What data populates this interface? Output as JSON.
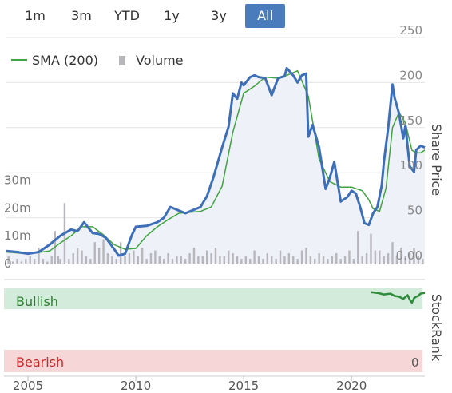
{
  "range_buttons": [
    {
      "label": "1m",
      "active": false
    },
    {
      "label": "3m",
      "active": false
    },
    {
      "label": "YTD",
      "active": false
    },
    {
      "label": "1y",
      "active": false
    },
    {
      "label": "3y",
      "active": false
    },
    {
      "label": "All",
      "active": true
    }
  ],
  "colors": {
    "price": "#3d6fb8",
    "sma": "#3fa33f",
    "volume": "#b7b7bb",
    "area": "#eef1f7",
    "bullish_band": "#d2ebdb",
    "bearish_band": "#f6d6d6",
    "stockrank": "#2e8b3a",
    "grid": "#e4e4e4",
    "accent": "#4a7bbd"
  },
  "chart_data": [
    {
      "type": "line",
      "legend": [
        {
          "label": "SMA (200)",
          "kind": "line"
        },
        {
          "label": "Volume",
          "kind": "bar"
        }
      ],
      "legend_position": "top-left",
      "ylabel": "Share Price",
      "y_ticks": [
        "250",
        "200",
        "150",
        "100",
        "50",
        "0.00"
      ],
      "ylim": [
        0,
        250
      ],
      "vol_ticks": [
        "30m",
        "20m",
        "10m",
        "0"
      ],
      "vol_lim": [
        0,
        37
      ],
      "x_ticks": [
        "2005",
        "2010",
        "2015",
        "2020"
      ],
      "xlim": [
        2004.0,
        2023.4
      ],
      "grid": true,
      "series": [
        {
          "name": "Price",
          "x": [
            2004.0,
            2004.5,
            2005.0,
            2005.5,
            2006.0,
            2006.5,
            2007.0,
            2007.3,
            2007.6,
            2008.0,
            2008.3,
            2008.6,
            2009.0,
            2009.2,
            2009.5,
            2009.8,
            2010.0,
            2010.5,
            2011.0,
            2011.3,
            2011.6,
            2012.0,
            2012.3,
            2012.6,
            2013.0,
            2013.3,
            2013.6,
            2014.0,
            2014.3,
            2014.5,
            2014.7,
            2014.9,
            2015.0,
            2015.3,
            2015.5,
            2015.7,
            2016.0,
            2016.3,
            2016.6,
            2016.9,
            2017.0,
            2017.3,
            2017.5,
            2017.7,
            2017.9,
            2018.0,
            2018.2,
            2018.5,
            2018.8,
            2019.0,
            2019.2,
            2019.5,
            2019.8,
            2020.0,
            2020.2,
            2020.4,
            2020.6,
            2020.8,
            2021.0,
            2021.2,
            2021.4,
            2021.5,
            2021.7,
            2021.9,
            2022.0,
            2022.2,
            2022.4,
            2022.5,
            2022.7,
            2022.9,
            2023.0,
            2023.2,
            2023.4
          ],
          "y": [
            13,
            12,
            10,
            12,
            20,
            30,
            37,
            35,
            45,
            33,
            32,
            28,
            15,
            8,
            10,
            30,
            40,
            41,
            45,
            50,
            62,
            58,
            55,
            58,
            62,
            74,
            95,
            128,
            151,
            188,
            182,
            200,
            197,
            206,
            208,
            206,
            205,
            186,
            205,
            207,
            216,
            208,
            200,
            208,
            210,
            140,
            153,
            128,
            82,
            95,
            112,
            68,
            73,
            80,
            77,
            62,
            44,
            42,
            55,
            62,
            86,
            112,
            150,
            198,
            183,
            166,
            138,
            152,
            107,
            101,
            125,
            130,
            128
          ]
        },
        {
          "name": "SMA (200)",
          "x": [
            2004.0,
            2005.0,
            2006.0,
            2006.5,
            2007.0,
            2007.5,
            2008.0,
            2008.5,
            2009.0,
            2009.5,
            2010.0,
            2010.5,
            2011.0,
            2011.5,
            2012.0,
            2012.5,
            2013.0,
            2013.5,
            2014.0,
            2014.5,
            2015.0,
            2015.5,
            2016.0,
            2016.5,
            2017.0,
            2017.5,
            2018.0,
            2018.5,
            2019.0,
            2019.5,
            2020.0,
            2020.5,
            2020.8,
            2021.0,
            2021.3,
            2021.6,
            2021.9,
            2022.2,
            2022.5,
            2022.8,
            2023.0,
            2023.2,
            2023.4
          ],
          "y": [
            12,
            10,
            13,
            22,
            30,
            40,
            40,
            31,
            20,
            15,
            16,
            30,
            40,
            48,
            55,
            56,
            57,
            62,
            85,
            145,
            188,
            196,
            206,
            205,
            208,
            213,
            185,
            115,
            90,
            84,
            84,
            80,
            70,
            60,
            57,
            83,
            150,
            167,
            155,
            125,
            122,
            122,
            125
          ]
        }
      ],
      "volume_bars": {
        "x": [
          2004.1,
          2004.3,
          2004.5,
          2004.7,
          2004.9,
          2005.1,
          2005.3,
          2005.5,
          2005.7,
          2005.9,
          2006.1,
          2006.25,
          2006.4,
          2006.5,
          2006.7,
          2006.9,
          2007.1,
          2007.3,
          2007.5,
          2007.7,
          2007.9,
          2008.1,
          2008.3,
          2008.5,
          2008.7,
          2008.9,
          2009.1,
          2009.3,
          2009.5,
          2009.7,
          2009.9,
          2010.1,
          2010.3,
          2010.5,
          2010.7,
          2010.9,
          2011.1,
          2011.3,
          2011.5,
          2011.7,
          2011.9,
          2012.1,
          2012.3,
          2012.5,
          2012.7,
          2012.9,
          2013.1,
          2013.3,
          2013.5,
          2013.7,
          2013.9,
          2014.1,
          2014.3,
          2014.5,
          2014.7,
          2014.9,
          2015.1,
          2015.3,
          2015.5,
          2015.7,
          2015.9,
          2016.1,
          2016.3,
          2016.5,
          2016.7,
          2016.9,
          2017.1,
          2017.3,
          2017.5,
          2017.7,
          2017.9,
          2018.1,
          2018.3,
          2018.5,
          2018.7,
          2018.9,
          2019.1,
          2019.3,
          2019.5,
          2019.7,
          2019.9,
          2020.1,
          2020.3,
          2020.5,
          2020.7,
          2020.9,
          2021.1,
          2021.3,
          2021.5,
          2021.7,
          2021.9,
          2022.1,
          2022.3,
          2022.5,
          2022.7,
          2022.9,
          2023.1,
          2023.3
        ],
        "y": [
          3,
          1,
          2,
          1,
          2,
          3,
          2,
          6,
          2,
          1,
          3,
          12,
          3,
          2,
          22,
          2,
          4,
          6,
          5,
          3,
          2,
          8,
          6,
          9,
          4,
          3,
          2,
          8,
          3,
          4,
          5,
          3,
          6,
          2,
          4,
          5,
          3,
          2,
          4,
          2,
          3,
          3,
          2,
          4,
          6,
          3,
          3,
          5,
          4,
          6,
          3,
          3,
          5,
          4,
          3,
          2,
          3,
          2,
          5,
          3,
          2,
          4,
          3,
          2,
          5,
          3,
          4,
          3,
          2,
          5,
          6,
          3,
          2,
          4,
          3,
          2,
          3,
          4,
          2,
          3,
          5,
          2,
          12,
          3,
          4,
          11,
          5,
          5,
          3,
          4,
          8,
          3,
          6,
          3,
          4,
          6,
          3,
          2
        ]
      }
    },
    {
      "type": "line",
      "ylabel": "StockRank",
      "ylim": [
        0,
        100
      ],
      "band_labels": {
        "bullish": "Bullish",
        "bearish": "Bearish"
      },
      "zero_label": "0",
      "series": [
        {
          "name": "StockRank",
          "x": [
            2020.9,
            2021.2,
            2021.5,
            2021.8,
            2022.0,
            2022.2,
            2022.4,
            2022.6,
            2022.7,
            2022.8,
            2022.9,
            2023.0,
            2023.1,
            2023.2,
            2023.4
          ],
          "y": [
            96,
            95,
            93,
            94,
            91,
            90,
            87,
            92,
            86,
            82,
            88,
            90,
            91,
            94,
            95
          ]
        }
      ]
    }
  ]
}
